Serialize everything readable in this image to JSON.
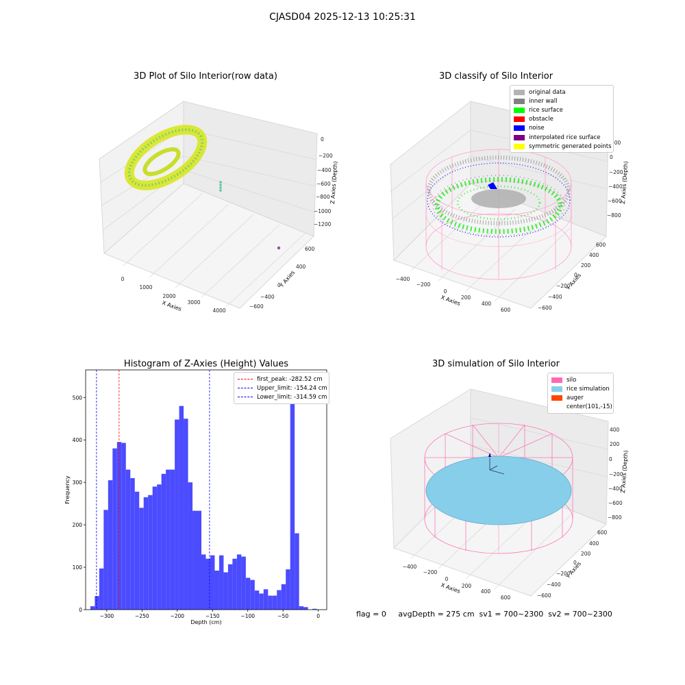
{
  "figure": {
    "suptitle": "CJASD04 2025-12-13 10:25:31"
  },
  "colors": {
    "hist": "#4b4bff",
    "first_peak": "#ff0000",
    "limits": "#0000ff",
    "raw_yellow": "#e0e81a",
    "raw_green": "#6bd16e",
    "silo": "#ff69b4",
    "rice": "#87ceeb",
    "auger": "#ff4500",
    "original": "#b3b3b3",
    "inner_wall": "#808080",
    "surface": "#00ff00",
    "obstacle": "#ff0000",
    "noise": "#0000ff",
    "interp": "#800080",
    "sym": "#ffff00"
  },
  "panels": {
    "raw": {
      "title": "3D Plot of Silo Interior(row data)",
      "x_label": "X Axies",
      "y_label": "Y Axies",
      "z_label": "Z Axies (Depth)",
      "x_ticks": [
        "0",
        "1000",
        "2000",
        "3000",
        "4000"
      ],
      "y_ticks": [
        "600",
        "400",
        "200",
        "0",
        "−200",
        "−400",
        "−600"
      ],
      "z_ticks": [
        "0",
        "−200",
        "−400",
        "−600",
        "−800",
        "−1000",
        "−1200"
      ]
    },
    "classify": {
      "title": "3D classify of Silo Interior",
      "x_label": "X Axies",
      "y_label": "Y Axies",
      "z_label": "Z Axies (Depth)",
      "x_ticks": [
        "−400",
        "−200",
        "0",
        "200",
        "400",
        "600"
      ],
      "y_ticks": [
        "600",
        "400",
        "200",
        "0",
        "−200",
        "−400",
        "−600"
      ],
      "z_ticks": [
        "200",
        "0",
        "−200",
        "−400",
        "−600",
        "−800"
      ],
      "legend": [
        {
          "label": "original data",
          "color": "#b3b3b3"
        },
        {
          "label": "inner wall",
          "color": "#808080"
        },
        {
          "label": "rice surface",
          "color": "#00ff00"
        },
        {
          "label": "obstacle",
          "color": "#ff0000"
        },
        {
          "label": "noise",
          "color": "#0000ff"
        },
        {
          "label": "interpolated rice surface",
          "color": "#800080"
        },
        {
          "label": "symmetric generated points",
          "color": "#ffff00"
        }
      ]
    },
    "histogram": {
      "title": "Histogram of Z-Axies (Height) Values"
    },
    "simulation": {
      "title": "3D simulation of Silo Interior",
      "x_label": "X Axies",
      "y_label": "Y Axies",
      "z_label": "Z Axies (Depth)",
      "x_ticks": [
        "−400",
        "−200",
        "0",
        "200",
        "400",
        "600"
      ],
      "y_ticks": [
        "600",
        "400",
        "200",
        "0",
        "−200",
        "−400",
        "−600"
      ],
      "z_ticks": [
        "400",
        "200",
        "0",
        "−200",
        "−400",
        "−600",
        "−800"
      ],
      "legend": [
        {
          "label": "silo",
          "color": "#ff69b4"
        },
        {
          "label": "rice simulation",
          "color": "#87ceeb"
        },
        {
          "label": "auger",
          "color": "#ff4500"
        },
        {
          "label": "center(101,-15)",
          "color": ""
        }
      ]
    }
  },
  "footer": {
    "flag": "flag = 0",
    "avg": "avgDepth = 275 cm  sv1 = 700~2300  sv2 = 700~2300"
  },
  "chart_data": [
    {
      "type": "bar",
      "subtype": "histogram",
      "title": "Histogram of Z-Axies (Height) Values",
      "xlabel": "Depth (cm)",
      "ylabel": "Frequency",
      "xlim": [
        -330,
        12
      ],
      "ylim": [
        0,
        565
      ],
      "x_ticks": [
        "−300",
        "−250",
        "−200",
        "−150",
        "−100",
        "−50",
        "0"
      ],
      "y_ticks": [
        "0",
        "100",
        "200",
        "300",
        "400",
        "500"
      ],
      "bin_width": 6.3,
      "bin_starts": [
        -323.3,
        -317.0,
        -310.7,
        -304.4,
        -298.1,
        -291.8,
        -285.5,
        -279.2,
        -272.9,
        -266.6,
        -260.3,
        -254.0,
        -247.7,
        -241.4,
        -235.1,
        -228.8,
        -222.5,
        -216.2,
        -209.9,
        -203.6,
        -197.3,
        -191.0,
        -184.7,
        -178.4,
        -172.1,
        -165.8,
        -159.5,
        -153.2,
        -146.9,
        -140.6,
        -134.3,
        -128.0,
        -121.7,
        -115.4,
        -109.1,
        -102.8,
        -96.5,
        -90.2,
        -83.9,
        -77.6,
        -71.3,
        -65.0,
        -58.7,
        -52.4,
        -46.1,
        -39.8,
        -33.5,
        -27.2,
        -20.9,
        -14.6,
        -8.3,
        -2.0
      ],
      "values": [
        8,
        32,
        97,
        235,
        305,
        380,
        395,
        393,
        330,
        310,
        278,
        240,
        265,
        270,
        290,
        295,
        320,
        330,
        330,
        448,
        480,
        450,
        300,
        233,
        233,
        130,
        120,
        128,
        92,
        128,
        88,
        107,
        120,
        130,
        125,
        75,
        70,
        45,
        38,
        48,
        33,
        33,
        46,
        60,
        95,
        525,
        180,
        8,
        6,
        0,
        2,
        0
      ],
      "legend_position": "upper right",
      "lines": [
        {
          "label": "first_peak: -282.52 cm",
          "x": -282.52,
          "color": "#ff0000"
        },
        {
          "label": "Upper_limit: -154.24 cm",
          "x": -154.24,
          "color": "#0000ff"
        },
        {
          "label": "Lower_limit: -314.59 cm",
          "x": -314.59,
          "color": "#0000ff"
        }
      ]
    }
  ]
}
